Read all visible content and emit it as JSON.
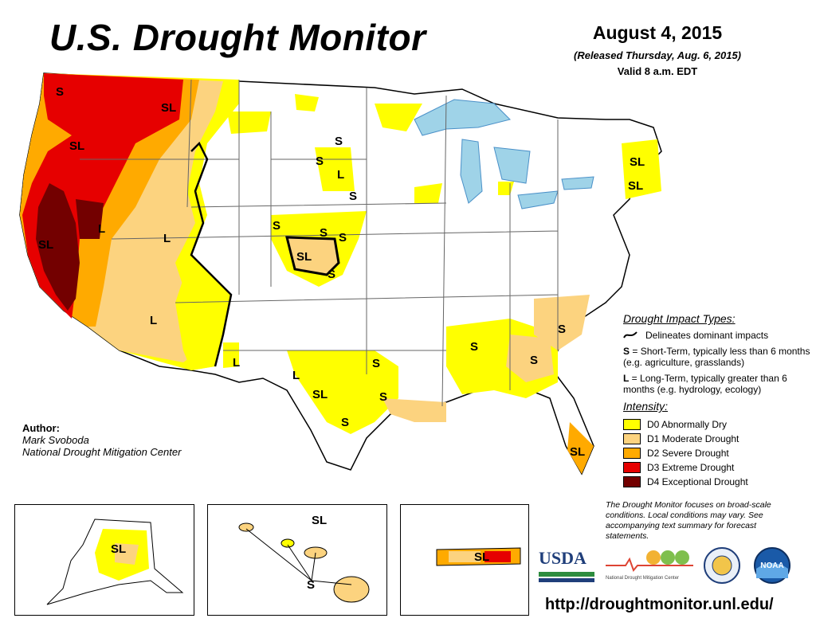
{
  "header": {
    "title": "U.S. Drought Monitor",
    "date": "August 4, 2015",
    "released": "(Released Thursday, Aug. 6, 2015)",
    "valid": "Valid 8 a.m. EDT"
  },
  "map_labels": {
    "wa_s": "S",
    "wa_sl": "SL",
    "or_sl": "SL",
    "nv_l": "L",
    "ca_sl": "SL",
    "ut_l": "L",
    "az_l": "L",
    "nm_l": "L",
    "sd_s1": "S",
    "sd_s2": "S",
    "sd_l": "L",
    "ne_s": "S",
    "ne_s2": "S",
    "ne_s3": "S",
    "ne_s4": "S",
    "ks_sl": "SL",
    "ks_s": "S",
    "tx_l": "L",
    "tx_sl": "SL",
    "tx_s": "S",
    "la_s1": "S",
    "la_s2": "S",
    "al_s": "S",
    "ga_s": "S",
    "sc_s": "S",
    "fl_sl": "SL",
    "ne_sl1": "SL",
    "ne_sl2": "SL",
    "ak_sl": "SL",
    "hi_sl": "SL",
    "hi_s": "S",
    "pr_sl": "SL"
  },
  "legend": {
    "impact_title": "Drought Impact Types:",
    "impact_line": "Delineates dominant impacts",
    "short_term_letter": "S",
    "short_term_text": " = Short-Term, typically less than 6 months (e.g. agriculture, grasslands)",
    "long_term_letter": "L",
    "long_term_text": " = Long-Term, typically greater than 6 months (e.g. hydrology, ecology)",
    "intensity_title": "Intensity:",
    "categories": [
      {
        "label": "D0 Abnormally Dry",
        "color": "#ffff00"
      },
      {
        "label": "D1 Moderate Drought",
        "color": "#fcd37f"
      },
      {
        "label": "D2 Severe Drought",
        "color": "#ffaa00"
      },
      {
        "label": "D3 Extreme Drought",
        "color": "#e60000"
      },
      {
        "label": "D4 Exceptional Drought",
        "color": "#730000"
      }
    ]
  },
  "author": {
    "heading": "Author:",
    "name": "Mark Svoboda",
    "org": "National Drought Mitigation Center"
  },
  "note": "The Drought Monitor focuses on broad-scale conditions. Local conditions may vary. See accompanying text summary for forecast statements.",
  "logos": {
    "usda": "USDA",
    "ndmc": "National Drought Mitigation Center",
    "doc_icon": "department-of-commerce-seal-icon",
    "noaa": "NOAA"
  },
  "url": "http://droughtmonitor.unl.edu/"
}
